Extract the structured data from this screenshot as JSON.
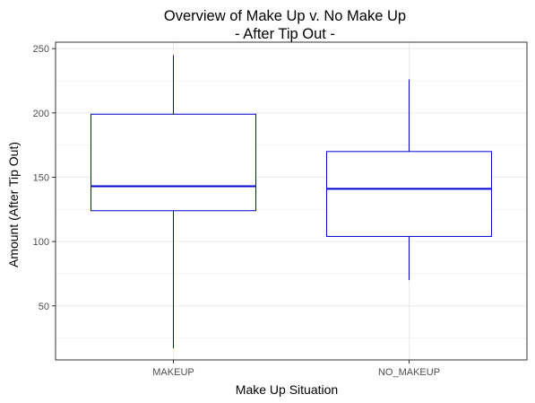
{
  "chart_data": {
    "type": "boxplot",
    "title_line1": "Overview of Make Up v. No Make Up",
    "title_line2": "- After Tip Out -",
    "xlabel": "Make Up Situation",
    "ylabel": "Amount (After Tip Out)",
    "ylim": [
      8,
      255
    ],
    "y_ticks": [
      50,
      100,
      150,
      200,
      250
    ],
    "y_minor_ticks": [
      25,
      75,
      125,
      175,
      225
    ],
    "grid": true,
    "box_color": "#0000cd",
    "panel_border_color": "#333333",
    "grid_color": "#ebebeb",
    "categories": [
      "MAKEUP",
      "NO_MAKEUP"
    ],
    "boxes": [
      {
        "category": "MAKEUP",
        "min": 17,
        "q1": 124,
        "median": 143,
        "q3": 199,
        "max": 245
      },
      {
        "category": "NO_MAKEUP",
        "min": 70,
        "q1": 104,
        "median": 141,
        "q3": 170,
        "max": 226
      }
    ]
  }
}
